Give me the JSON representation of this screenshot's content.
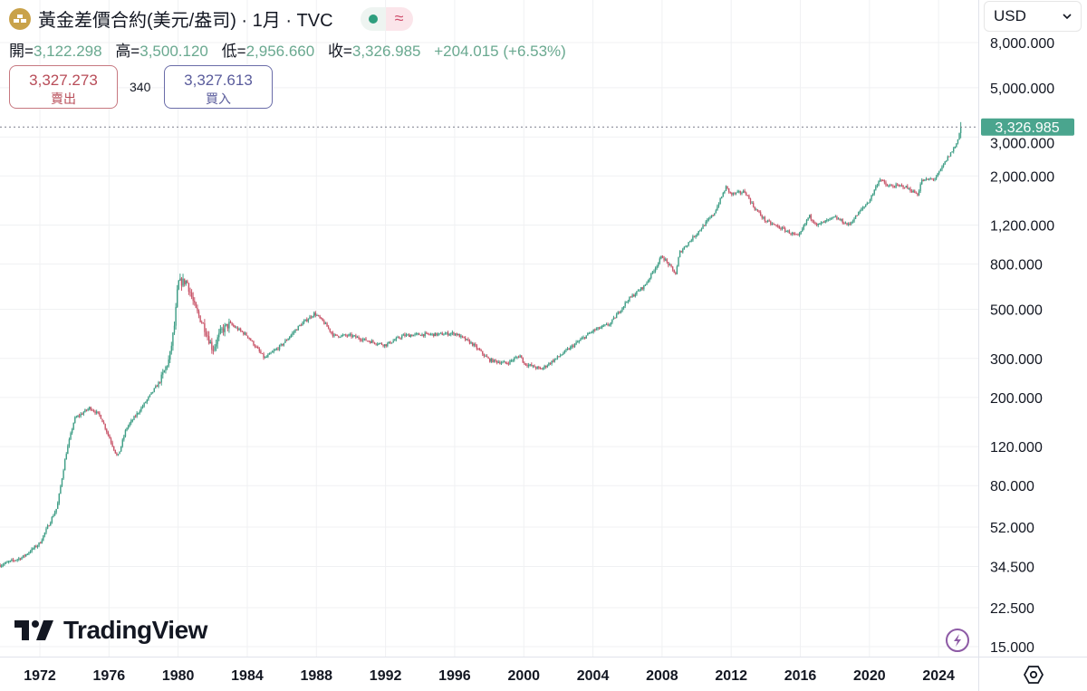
{
  "header": {
    "title": "黃金差價合約(美元/盎司) · 1月 · TVC",
    "logo_icon": "gold-bars-icon",
    "status_icons": [
      "market-open-dot-icon",
      "delayed-data-approx-icon"
    ],
    "ohlc": {
      "open_label": "開=",
      "open": "3,122.298",
      "high_label": "高=",
      "high": "3,500.120",
      "low_label": "低=",
      "low": "2,956.660",
      "close_label": "收=",
      "close": "3,326.985",
      "change": "+204.015 (+6.53%)"
    },
    "sell": {
      "price": "3,327.273",
      "label": "賣出"
    },
    "spread": "340",
    "buy": {
      "price": "3,327.613",
      "label": "買入"
    }
  },
  "currency_select": {
    "value": "USD"
  },
  "branding": {
    "logo_text": "TradingView"
  },
  "colors": {
    "up": "#3f9e86",
    "down": "#c9566a",
    "price_label_bg": "#4aa58e",
    "grid": "#f0f1f3"
  },
  "chart_data": {
    "type": "candlestick",
    "title": "黃金差價合約(美元/盎司) · 1月 · TVC",
    "interval": "1 month",
    "y_scale": "log",
    "ylim": [
      15,
      8000
    ],
    "xlim": [
      1969.7,
      2026.1
    ],
    "grid": true,
    "last_price": 3326.985,
    "last_price_label": "3,326.985",
    "y_ticks": [
      {
        "value": 8000,
        "label": "8,000.000"
      },
      {
        "value": 5000,
        "label": "5,000.000"
      },
      {
        "value": 3000,
        "label": "3,000.000"
      },
      {
        "value": 2000,
        "label": "2,000.000"
      },
      {
        "value": 1200,
        "label": "1,200.000"
      },
      {
        "value": 800,
        "label": "800.000"
      },
      {
        "value": 500,
        "label": "500.000"
      },
      {
        "value": 300,
        "label": "300.000"
      },
      {
        "value": 200,
        "label": "200.000"
      },
      {
        "value": 120,
        "label": "120.000"
      },
      {
        "value": 80,
        "label": "80.000"
      },
      {
        "value": 52,
        "label": "52.000"
      },
      {
        "value": 34.5,
        "label": "34.500"
      },
      {
        "value": 22.5,
        "label": "22.500"
      },
      {
        "value": 15,
        "label": "15.000"
      }
    ],
    "x_ticks": [
      {
        "value": 1972,
        "label": "1972"
      },
      {
        "value": 1976,
        "label": "1976"
      },
      {
        "value": 1980,
        "label": "1980"
      },
      {
        "value": 1984,
        "label": "1984"
      },
      {
        "value": 1988,
        "label": "1988"
      },
      {
        "value": 1992,
        "label": "1992"
      },
      {
        "value": 1996,
        "label": "1996"
      },
      {
        "value": 2000,
        "label": "2000"
      },
      {
        "value": 2004,
        "label": "2004"
      },
      {
        "value": 2008,
        "label": "2008"
      },
      {
        "value": 2012,
        "label": "2012"
      },
      {
        "value": 2016,
        "label": "2016"
      },
      {
        "value": 2020,
        "label": "2020"
      },
      {
        "value": 2024,
        "label": "2024"
      }
    ],
    "close_series": [
      [
        1969.7,
        35
      ],
      [
        1971.0,
        38
      ],
      [
        1972.0,
        44
      ],
      [
        1973.0,
        64
      ],
      [
        1973.5,
        110
      ],
      [
        1974.0,
        160
      ],
      [
        1974.9,
        180
      ],
      [
        1975.5,
        165
      ],
      [
        1976.5,
        107
      ],
      [
        1977.0,
        145
      ],
      [
        1978.0,
        185
      ],
      [
        1979.0,
        240
      ],
      [
        1979.5,
        300
      ],
      [
        1979.8,
        430
      ],
      [
        1980.0,
        660
      ],
      [
        1980.5,
        670
      ],
      [
        1981.0,
        500
      ],
      [
        1981.5,
        420
      ],
      [
        1982.0,
        330
      ],
      [
        1982.5,
        400
      ],
      [
        1983.0,
        430
      ],
      [
        1984.0,
        380
      ],
      [
        1985.0,
        300
      ],
      [
        1986.0,
        345
      ],
      [
        1987.0,
        420
      ],
      [
        1987.9,
        480
      ],
      [
        1988.5,
        430
      ],
      [
        1989.0,
        380
      ],
      [
        1990.0,
        380
      ],
      [
        1991.0,
        360
      ],
      [
        1992.0,
        345
      ],
      [
        1993.0,
        380
      ],
      [
        1994.0,
        385
      ],
      [
        1995.0,
        385
      ],
      [
        1996.0,
        390
      ],
      [
        1997.0,
        350
      ],
      [
        1998.0,
        295
      ],
      [
        1999.0,
        285
      ],
      [
        1999.8,
        310
      ],
      [
        2000.0,
        285
      ],
      [
        2001.0,
        268
      ],
      [
        2002.0,
        305
      ],
      [
        2003.0,
        350
      ],
      [
        2004.0,
        400
      ],
      [
        2005.0,
        430
      ],
      [
        2006.0,
        550
      ],
      [
        2007.0,
        640
      ],
      [
        2008.0,
        870
      ],
      [
        2008.8,
        720
      ],
      [
        2009.0,
        900
      ],
      [
        2010.0,
        1100
      ],
      [
        2011.0,
        1350
      ],
      [
        2011.7,
        1780
      ],
      [
        2012.0,
        1650
      ],
      [
        2012.8,
        1700
      ],
      [
        2013.3,
        1450
      ],
      [
        2014.0,
        1250
      ],
      [
        2015.0,
        1150
      ],
      [
        2015.9,
        1060
      ],
      [
        2016.5,
        1320
      ],
      [
        2017.0,
        1200
      ],
      [
        2018.0,
        1300
      ],
      [
        2018.8,
        1200
      ],
      [
        2019.5,
        1400
      ],
      [
        2020.0,
        1550
      ],
      [
        2020.6,
        1950
      ],
      [
        2021.0,
        1800
      ],
      [
        2022.0,
        1800
      ],
      [
        2022.8,
        1650
      ],
      [
        2023.0,
        1900
      ],
      [
        2023.8,
        1950
      ],
      [
        2024.0,
        2050
      ],
      [
        2024.5,
        2400
      ],
      [
        2025.0,
        2750
      ],
      [
        2025.3,
        3326.985
      ]
    ],
    "last_candle": {
      "open": 3122.298,
      "high": 3500.12,
      "low": 2956.66,
      "close": 3326.985
    }
  }
}
